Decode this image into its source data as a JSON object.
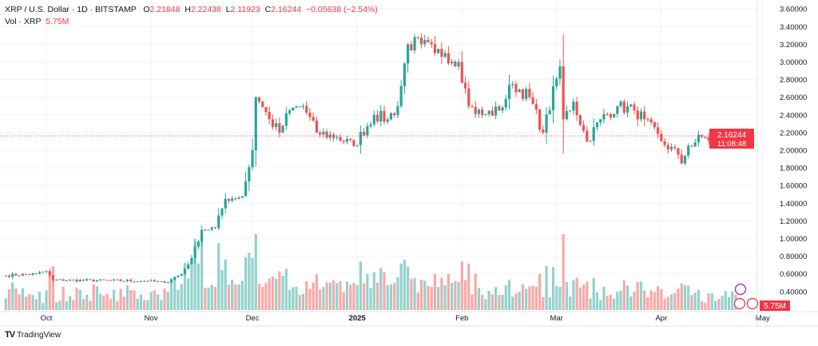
{
  "header": {
    "symbol": "XRP / U.S. Dollar · 1D · BITSTAMP",
    "open_label": "O",
    "open": "2.21848",
    "high_label": "H",
    "high": "2.22438",
    "low_label": "L",
    "low": "2.11923",
    "close_label": "C",
    "close": "2.16244",
    "change": "−0.05638 (−2.54%)",
    "vol_label": "Vol · XRP",
    "vol": "5.75M"
  },
  "price_label": {
    "price": "2.16244",
    "countdown": "11:08:48",
    "volume": "5.75M"
  },
  "branding": {
    "name": "TradingView"
  },
  "colors": {
    "up": "#26a69a",
    "down": "#ef5350",
    "vol_up": "#92d2cc",
    "vol_down": "#f7a9a7",
    "label": "#f23645"
  },
  "chart_data": {
    "type": "candlestick",
    "title": "XRP / U.S. Dollar · 1D · BITSTAMP",
    "y_ticks": [
      "3.60000",
      "3.40000",
      "3.20000",
      "3.00000",
      "2.80000",
      "2.60000",
      "2.40000",
      "2.20000",
      "2.00000",
      "1.80000",
      "1.60000",
      "1.40000",
      "1.20000",
      "1.00000",
      "0.80000",
      "0.60000",
      "0.40000"
    ],
    "ylim": [
      0.4,
      3.6
    ],
    "x_ticks": [
      {
        "label": "Oct",
        "day": 12,
        "bold": false
      },
      {
        "label": "Nov",
        "day": 43,
        "bold": false
      },
      {
        "label": "Dec",
        "day": 73,
        "bold": false
      },
      {
        "label": "2025",
        "day": 104,
        "bold": true
      },
      {
        "label": "Feb",
        "day": 135,
        "bold": false
      },
      {
        "label": "Mar",
        "day": 163,
        "bold": false
      },
      {
        "label": "Apr",
        "day": 194,
        "bold": false
      },
      {
        "label": "May",
        "day": 224,
        "bold": false
      }
    ],
    "start_date": "Sep 19",
    "close_keypoints": [
      [
        0,
        0.58
      ],
      [
        9,
        0.6
      ],
      [
        12,
        0.63
      ],
      [
        14,
        0.53
      ],
      [
        42,
        0.52
      ],
      [
        47,
        0.5
      ],
      [
        52,
        0.6
      ],
      [
        55,
        0.78
      ],
      [
        58,
        1.1
      ],
      [
        62,
        1.12
      ],
      [
        65,
        1.45
      ],
      [
        70,
        1.48
      ],
      [
        73,
        2.0
      ],
      [
        74,
        2.6
      ],
      [
        75,
        2.55
      ],
      [
        78,
        2.35
      ],
      [
        81,
        2.2
      ],
      [
        84,
        2.45
      ],
      [
        88,
        2.5
      ],
      [
        92,
        2.2
      ],
      [
        98,
        2.15
      ],
      [
        103,
        2.05
      ],
      [
        109,
        2.4
      ],
      [
        113,
        2.35
      ],
      [
        116,
        2.5
      ],
      [
        119,
        3.2
      ],
      [
        123,
        3.2
      ],
      [
        127,
        3.1
      ],
      [
        130,
        3.1
      ],
      [
        134,
        3.0
      ],
      [
        136,
        2.7
      ],
      [
        137,
        2.5
      ],
      [
        141,
        2.4
      ],
      [
        146,
        2.45
      ],
      [
        150,
        2.75
      ],
      [
        155,
        2.6
      ],
      [
        159,
        2.2
      ],
      [
        164,
        2.95
      ],
      [
        165,
        2.35
      ],
      [
        168,
        2.55
      ],
      [
        172,
        2.1
      ],
      [
        176,
        2.35
      ],
      [
        181,
        2.5
      ],
      [
        186,
        2.45
      ],
      [
        189,
        2.35
      ],
      [
        194,
        2.1
      ],
      [
        199,
        1.95
      ],
      [
        200,
        1.85
      ],
      [
        202,
        2.05
      ],
      [
        206,
        2.15
      ],
      [
        211,
        2.1
      ],
      [
        214,
        2.2
      ],
      [
        215,
        2.22
      ],
      [
        216,
        2.16244
      ]
    ],
    "last_price": 2.16244
  }
}
